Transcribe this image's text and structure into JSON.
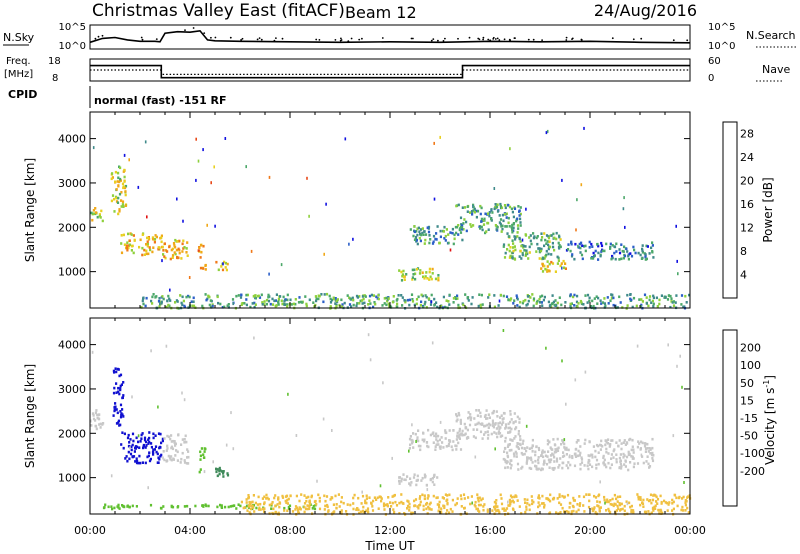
{
  "header": {
    "title": "Christmas Valley East (fitACF)",
    "beam": "Beam 12",
    "date": "24/Aug/2016"
  },
  "panel_nsky": {
    "left_label": "N.Sky",
    "right_label": "N.Search",
    "left_ticks": [
      "10^5",
      "10^0"
    ],
    "right_ticks": [
      "10^5",
      "10^0"
    ]
  },
  "panel_freq": {
    "left_label_1": "Freq.",
    "left_label_2": "[MHz]",
    "right_label": "Nave",
    "left_ticks": [
      "18",
      "8"
    ],
    "right_ticks": [
      "60",
      "0"
    ],
    "cpid_label": "CPID",
    "cpid_text": "normal (fast) -151 RF"
  },
  "time_axis": {
    "label": "Time UT",
    "ticks": [
      "00:00",
      "04:00",
      "08:00",
      "12:00",
      "16:00",
      "20:00",
      "00:00"
    ]
  },
  "colors": {
    "power": [
      "#1010e0",
      "#2b5fc8",
      "#3f8a8a",
      "#4ca86a",
      "#8ed03c",
      "#e8d020",
      "#f0a818",
      "#f07818",
      "#e84818",
      "#e01010"
    ],
    "velocity": [
      "#e00010",
      "#f05010",
      "#f08c10",
      "#f0c040",
      "#c8c8c8",
      "#c8c8c8",
      "#60c030",
      "#3f8a5a",
      "#2a50c0",
      "#1010d0"
    ],
    "gray": "#c8c8c8"
  },
  "chart_data": [
    {
      "type": "line",
      "name": "nsky",
      "title": "N.Sky",
      "x_unit": "hours UT",
      "xlim": [
        0,
        24
      ],
      "ylim": [
        0,
        5
      ],
      "ytick_labels": [
        "10^0",
        "10^5"
      ],
      "x": [
        0,
        0.5,
        1,
        1.5,
        2,
        2.6,
        2.8,
        3.0,
        3.5,
        4.0,
        4.4,
        4.7,
        5.0,
        6,
        8,
        10,
        12,
        14,
        16,
        18,
        20,
        22,
        24
      ],
      "values": [
        1.4,
        2.2,
        2.4,
        1.9,
        1.6,
        1.6,
        1.5,
        3.3,
        3.6,
        3.5,
        3.8,
        1.9,
        1.7,
        1.6,
        1.5,
        1.4,
        1.5,
        1.4,
        1.6,
        1.5,
        1.6,
        1.4,
        1.3
      ]
    },
    {
      "type": "line",
      "name": "frequency",
      "title": "Freq. [MHz]",
      "x_unit": "hours UT",
      "xlim": [
        0,
        24
      ],
      "ylim": [
        8,
        18
      ],
      "yticks": [
        8,
        18
      ],
      "x": [
        0,
        2.85,
        2.85,
        14.9,
        14.9,
        24
      ],
      "values": [
        15,
        15,
        9.5,
        9.5,
        15,
        15
      ]
    },
    {
      "type": "line",
      "name": "nave",
      "title": "Nave",
      "x_unit": "hours UT",
      "xlim": [
        0,
        24
      ],
      "ylim": [
        0,
        60
      ],
      "yticks": [
        0,
        60
      ],
      "x": [
        0,
        2.85,
        2.85,
        14.9,
        14.9,
        24
      ],
      "values": [
        30,
        30,
        18,
        18,
        30,
        30
      ]
    },
    {
      "type": "heatmap",
      "name": "power",
      "xlabel": "Time UT",
      "ylabel": "Slant Range [km]",
      "x_unit": "hours UT",
      "xlim": [
        0,
        24
      ],
      "ylim": [
        180,
        4600
      ],
      "yticks": [
        1000,
        2000,
        3000,
        4000
      ],
      "colorbar": {
        "label": "Power [dB]",
        "ticks": [
          4,
          8,
          12,
          16,
          20,
          24,
          28
        ],
        "range": [
          0,
          30
        ]
      },
      "regions": [
        {
          "t0": 0.0,
          "t1": 0.5,
          "r0": 2150,
          "r1": 2500,
          "v": 14
        },
        {
          "t0": 0.8,
          "t1": 1.4,
          "r0": 2300,
          "r1": 3400,
          "v": 16
        },
        {
          "t0": 1.2,
          "t1": 2.9,
          "r0": 1400,
          "r1": 1900,
          "v": 18
        },
        {
          "t0": 2.9,
          "t1": 3.9,
          "r0": 1300,
          "r1": 1750,
          "v": 19
        },
        {
          "t0": 4.3,
          "t1": 4.6,
          "r0": 1050,
          "r1": 1650,
          "v": 20
        },
        {
          "t0": 5.0,
          "t1": 5.5,
          "r0": 1050,
          "r1": 1250,
          "v": 18
        },
        {
          "t0": 12.3,
          "t1": 13.9,
          "r0": 830,
          "r1": 1100,
          "v": 14
        },
        {
          "t0": 12.7,
          "t1": 14.9,
          "r0": 1650,
          "r1": 2050,
          "v": 9
        },
        {
          "t0": 14.6,
          "t1": 17.2,
          "r0": 1900,
          "r1": 2550,
          "v": 9
        },
        {
          "t0": 16.5,
          "t1": 18.8,
          "r0": 1300,
          "r1": 1900,
          "v": 11
        },
        {
          "t0": 18.0,
          "t1": 19.0,
          "r0": 1000,
          "r1": 1300,
          "v": 17
        },
        {
          "t0": 19.0,
          "t1": 22.5,
          "r0": 1300,
          "r1": 1700,
          "v": 7
        },
        {
          "t0": 2.0,
          "t1": 24.0,
          "r0": 200,
          "r1": 520,
          "v": 10
        }
      ]
    },
    {
      "type": "heatmap",
      "name": "velocity",
      "xlabel": "Time UT",
      "ylabel": "Slant Range [km]",
      "x_unit": "hours UT",
      "xlim": [
        0,
        24
      ],
      "ylim": [
        180,
        4600
      ],
      "yticks": [
        1000,
        2000,
        3000,
        4000
      ],
      "colorbar": {
        "label": "Velocity [m s^-1]",
        "ticks": [
          200,
          100,
          50,
          15,
          -15,
          -50,
          -100,
          -200
        ],
        "range": [
          -250,
          250
        ]
      },
      "regions": [
        {
          "t0": 0.0,
          "t1": 0.5,
          "r0": 2100,
          "r1": 2550,
          "v": 0
        },
        {
          "t0": 0.9,
          "t1": 1.3,
          "r0": 2200,
          "r1": 3500,
          "v": 230
        },
        {
          "t0": 1.2,
          "t1": 2.9,
          "r0": 1350,
          "r1": 2050,
          "v": 230
        },
        {
          "t0": 2.9,
          "t1": 3.9,
          "r0": 1350,
          "r1": 2000,
          "v": 0
        },
        {
          "t0": 4.3,
          "t1": 4.6,
          "r0": 1150,
          "r1": 1700,
          "v": 30
        },
        {
          "t0": 5.0,
          "t1": 5.5,
          "r0": 1050,
          "r1": 1250,
          "v": 70
        },
        {
          "t0": 12.3,
          "t1": 13.9,
          "r0": 830,
          "r1": 1100,
          "v": 0
        },
        {
          "t0": 12.7,
          "t1": 14.9,
          "r0": 1650,
          "r1": 2100,
          "v": 0
        },
        {
          "t0": 14.6,
          "t1": 17.2,
          "r0": 1900,
          "r1": 2550,
          "v": 0
        },
        {
          "t0": 16.5,
          "t1": 22.5,
          "r0": 1200,
          "r1": 1900,
          "v": 0
        },
        {
          "t0": 0.5,
          "t1": 9.0,
          "r0": 320,
          "r1": 420,
          "v": 30
        },
        {
          "t0": 6.0,
          "t1": 24.0,
          "r0": 200,
          "r1": 650,
          "v": -40
        }
      ]
    }
  ]
}
